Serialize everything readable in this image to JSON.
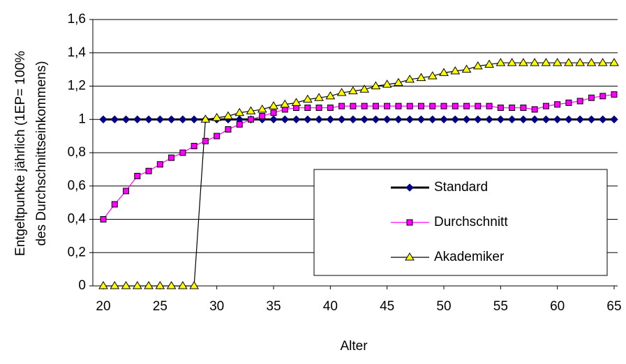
{
  "chart_data": {
    "type": "line",
    "xlabel": "Alter",
    "ylabel": [
      "Entgeltpunkte jährlich (1EP= 100%",
      "des Durchschnittseinkommens)"
    ],
    "x": [
      20,
      21,
      22,
      23,
      24,
      25,
      26,
      27,
      28,
      29,
      30,
      31,
      32,
      33,
      34,
      35,
      36,
      37,
      38,
      39,
      40,
      41,
      42,
      43,
      44,
      45,
      46,
      47,
      48,
      49,
      50,
      51,
      52,
      53,
      54,
      55,
      56,
      57,
      58,
      59,
      60,
      61,
      62,
      63,
      64,
      65
    ],
    "xlim": [
      20,
      65
    ],
    "xticks": [
      20,
      25,
      30,
      35,
      40,
      45,
      50,
      55,
      60,
      65
    ],
    "ylim": [
      0,
      1.6
    ],
    "yticks": [
      0,
      {
        "value": 0.2,
        "label": "0,2"
      },
      {
        "value": 0.4,
        "label": "0,4"
      },
      {
        "value": 0.6,
        "label": "0,6"
      },
      {
        "value": 0.8,
        "label": "0,8"
      },
      1,
      {
        "value": 1.2,
        "label": "1,2"
      },
      {
        "value": 1.4,
        "label": "1,4"
      },
      {
        "value": 1.6,
        "label": "1,6"
      }
    ],
    "grid": true,
    "legend": "lower right",
    "series": [
      {
        "name": "Standard",
        "color": "#000000",
        "marker": "diamond",
        "marker_color": "#000080",
        "values": [
          1,
          1,
          1,
          1,
          1,
          1,
          1,
          1,
          1,
          1,
          1,
          1,
          1,
          1,
          1,
          1,
          1,
          1,
          1,
          1,
          1,
          1,
          1,
          1,
          1,
          1,
          1,
          1,
          1,
          1,
          1,
          1,
          1,
          1,
          1,
          1,
          1,
          1,
          1,
          1,
          1,
          1,
          1,
          1,
          1,
          1
        ]
      },
      {
        "name": "Durchschnitt",
        "color": "#ff00ff",
        "marker": "square",
        "marker_color": "#ff00ff",
        "values": [
          0.4,
          0.49,
          0.57,
          0.66,
          0.69,
          0.73,
          0.77,
          0.8,
          0.84,
          0.87,
          0.9,
          0.94,
          0.97,
          1.0,
          1.02,
          1.04,
          1.06,
          1.07,
          1.07,
          1.07,
          1.07,
          1.08,
          1.08,
          1.08,
          1.08,
          1.08,
          1.08,
          1.08,
          1.08,
          1.08,
          1.08,
          1.08,
          1.08,
          1.08,
          1.08,
          1.07,
          1.07,
          1.07,
          1.06,
          1.08,
          1.09,
          1.1,
          1.11,
          1.13,
          1.14,
          1.15
        ]
      },
      {
        "name": "Akademiker",
        "color": "#000000",
        "marker": "triangle",
        "marker_color": "#ffff00",
        "values": [
          0,
          0,
          0,
          0,
          0,
          0,
          0,
          0,
          0,
          1.0,
          1.01,
          1.02,
          1.04,
          1.05,
          1.06,
          1.08,
          1.09,
          1.1,
          1.12,
          1.13,
          1.14,
          1.16,
          1.17,
          1.18,
          1.2,
          1.21,
          1.22,
          1.24,
          1.25,
          1.26,
          1.28,
          1.29,
          1.3,
          1.32,
          1.33,
          1.34,
          1.34,
          1.34,
          1.34,
          1.34,
          1.34,
          1.34,
          1.34,
          1.34,
          1.34,
          1.34
        ]
      }
    ]
  }
}
